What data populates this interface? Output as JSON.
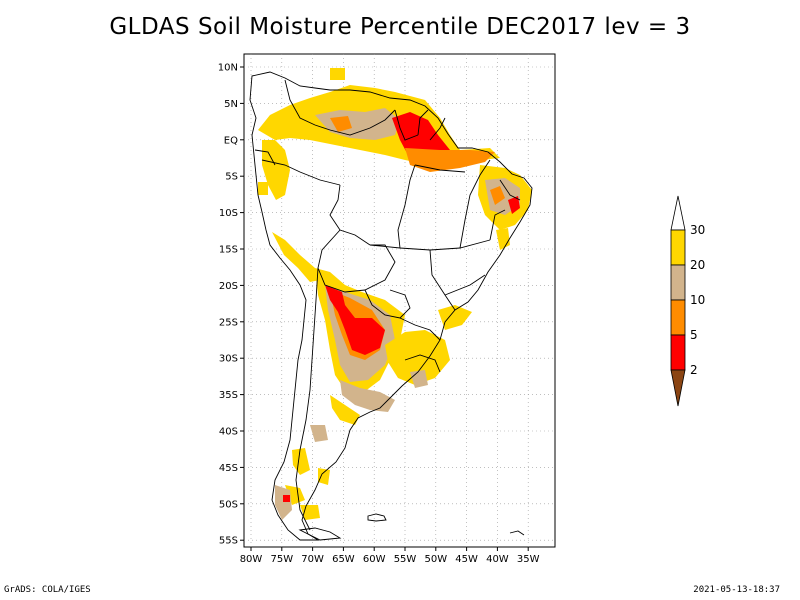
{
  "title": "GLDAS Soil Moisture Percentile DEC2017 lev = 3",
  "map": {
    "lat_labels": [
      "10N",
      "5N",
      "EQ",
      "5S",
      "10S",
      "15S",
      "20S",
      "25S",
      "30S",
      "35S",
      "40S",
      "45S",
      "50S",
      "55S"
    ],
    "lon_labels": [
      "80W",
      "75W",
      "70W",
      "65W",
      "60W",
      "55W",
      "50W",
      "45W",
      "40W",
      "35W"
    ]
  },
  "colorbar": {
    "labels": [
      "30",
      "20",
      "10",
      "5",
      "2"
    ],
    "colors": {
      "above_30": "#ffffff",
      "20_30": "#ffd700",
      "10_20": "#d2b48c",
      "5_10": "#ff8c00",
      "2_5": "#ff0000",
      "below_2": "#8b4513"
    }
  },
  "footer": {
    "left": "GrADS: COLA/IGES",
    "right": "2021-05-13-18:37"
  }
}
